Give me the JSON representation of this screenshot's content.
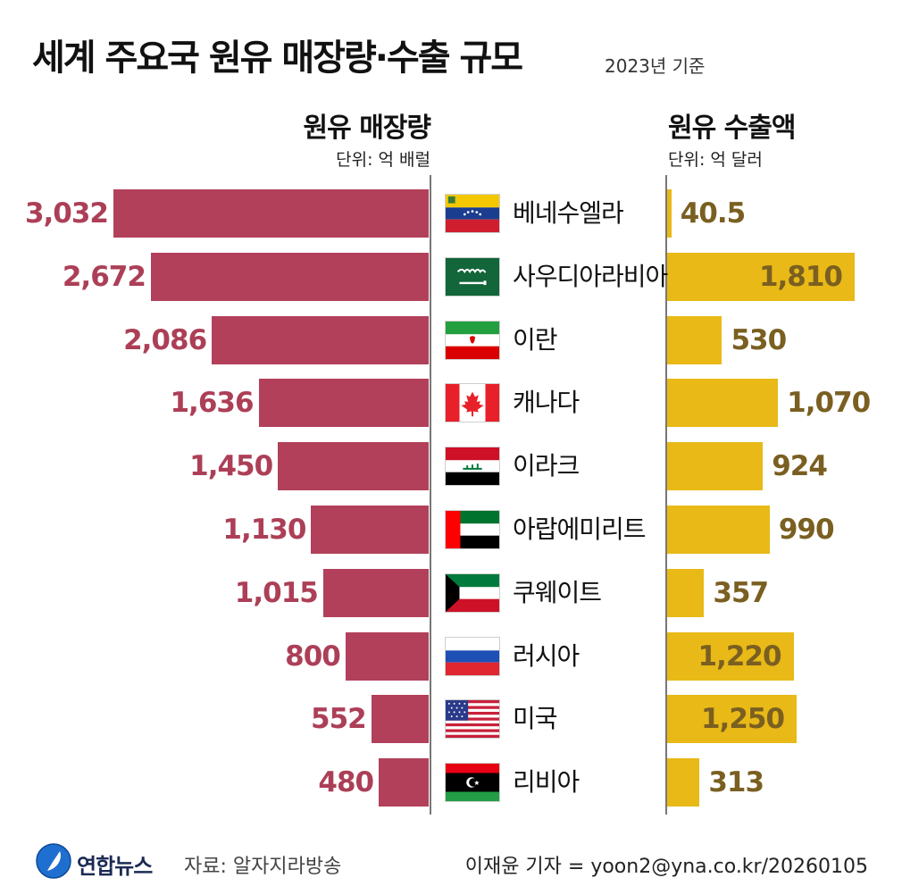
{
  "header": {
    "title": "세계 주요국 원유 매장량·수출 규모",
    "basis": "2023년 기준"
  },
  "footer": {
    "brand": "연합뉴스",
    "source": "자료: 알자지라방송",
    "credit": "이재윤 기자 = yoon2@yna.co.kr/20260105"
  },
  "colors": {
    "reserves_bar": "#b2405a",
    "exports_bar": "#e8b917",
    "reserves_label": "#ac3f57",
    "exports_label": "#7a5f21"
  },
  "chart_data": [
    {
      "type": "bar",
      "orientation": "horizontal",
      "direction": "right-to-left",
      "title": "원유 매장량",
      "unit_label": "단위: 억 배럴",
      "categories": [
        "베네수엘라",
        "사우디아라비아",
        "이란",
        "캐나다",
        "이라크",
        "아랍에미리트",
        "쿠웨이트",
        "러시아",
        "미국",
        "리비아"
      ],
      "values": [
        3032,
        2672,
        2086,
        1636,
        1450,
        1130,
        1015,
        800,
        552,
        480
      ],
      "value_labels": [
        "3,032",
        "2,672",
        "2,086",
        "1,636",
        "1,450",
        "1,130",
        "1,015",
        "800",
        "552",
        "480"
      ],
      "xlim": [
        0,
        3032
      ]
    },
    {
      "type": "bar",
      "orientation": "horizontal",
      "direction": "left-to-right",
      "title": "원유 수출액",
      "unit_label": "단위: 억 달러",
      "categories": [
        "베네수엘라",
        "사우디아라비아",
        "이란",
        "캐나다",
        "이라크",
        "아랍에미리트",
        "쿠웨이트",
        "러시아",
        "미국",
        "리비아"
      ],
      "values": [
        40.5,
        1810,
        530,
        1070,
        924,
        990,
        357,
        1220,
        1250,
        313
      ],
      "value_labels": [
        "40.5",
        "1,810",
        "530",
        "1,070",
        "924",
        "990",
        "357",
        "1,220",
        "1,250",
        "313"
      ],
      "xlim": [
        0,
        1810
      ]
    }
  ],
  "flags": [
    "venezuela-flag",
    "saudi-arabia-flag",
    "iran-flag",
    "canada-flag",
    "iraq-flag",
    "uae-flag",
    "kuwait-flag",
    "russia-flag",
    "usa-flag",
    "libya-flag"
  ]
}
